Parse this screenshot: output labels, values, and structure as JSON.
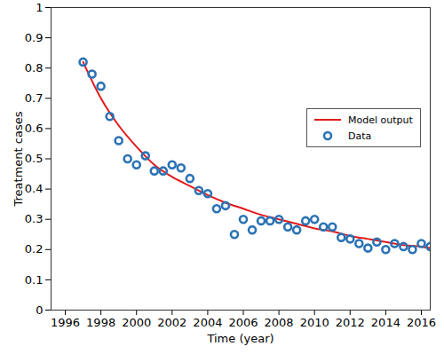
{
  "chart_data": {
    "type": "scatter",
    "x_label": "Time (year)",
    "y_label": "Treatment cases",
    "xlim": [
      1995.2,
      2016.5
    ],
    "xticks": [
      1996,
      1998,
      2000,
      2002,
      2004,
      2006,
      2008,
      2010,
      2012,
      2014,
      2016
    ],
    "ylim": [
      0,
      1
    ],
    "yticks": [
      0,
      0.1,
      0.2,
      0.3,
      0.4,
      0.5,
      0.6,
      0.7,
      0.8,
      0.9,
      1
    ],
    "grid": false,
    "legend": "right",
    "series": [
      {
        "name": "Model output",
        "type": "line",
        "color": "#e31a1c",
        "line_style": "solid",
        "x": [
          1997,
          1998,
          1999,
          2000,
          2001,
          2002,
          2003,
          2004,
          2005,
          2006,
          2007,
          2008,
          2009,
          2010,
          2011,
          2012,
          2013,
          2014,
          2015,
          2016,
          2016.5
        ],
        "values": [
          0.82,
          0.7,
          0.61,
          0.54,
          0.48,
          0.44,
          0.41,
          0.38,
          0.355,
          0.335,
          0.315,
          0.3,
          0.285,
          0.27,
          0.26,
          0.245,
          0.235,
          0.225,
          0.215,
          0.21,
          0.205
        ]
      },
      {
        "name": "Data",
        "type": "scatter",
        "marker": "circle",
        "color": "#2a72b5",
        "x": [
          1997,
          1997.5,
          1998,
          1998.5,
          1999,
          1999.5,
          2000,
          2000.5,
          2001,
          2001.5,
          2002,
          2002.5,
          2003,
          2003.5,
          2004,
          2004.5,
          2005,
          2005.5,
          2006,
          2006.5,
          2007,
          2007.5,
          2008,
          2008.5,
          2009,
          2009.5,
          2010,
          2010.5,
          2011,
          2011.5,
          2012,
          2012.5,
          2013,
          2013.5,
          2014,
          2014.5,
          2015,
          2015.5,
          2016,
          2016.5
        ],
        "values": [
          0.82,
          0.78,
          0.74,
          0.64,
          0.56,
          0.5,
          0.48,
          0.51,
          0.46,
          0.46,
          0.48,
          0.47,
          0.435,
          0.395,
          0.385,
          0.335,
          0.345,
          0.25,
          0.3,
          0.265,
          0.295,
          0.295,
          0.3,
          0.275,
          0.265,
          0.295,
          0.3,
          0.275,
          0.275,
          0.24,
          0.235,
          0.22,
          0.205,
          0.225,
          0.2,
          0.22,
          0.21,
          0.2,
          0.22,
          0.21
        ]
      }
    ]
  }
}
